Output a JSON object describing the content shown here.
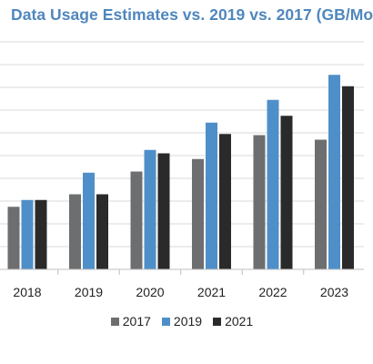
{
  "chart_data": {
    "type": "bar",
    "title": "Data Usage Estimates vs. 2019 vs. 2017 (GB/Mo",
    "categories": [
      "2018",
      "2019",
      "2020",
      "2021",
      "2022",
      "2023"
    ],
    "series": [
      {
        "name": "2017",
        "color": "#6d6e70",
        "values": [
          5.5,
          6.6,
          8.6,
          9.7,
          11.8,
          11.4
        ]
      },
      {
        "name": "2019",
        "color": "#4f8fc9",
        "values": [
          6.1,
          8.5,
          10.5,
          12.9,
          14.9,
          17.1
        ]
      },
      {
        "name": "2021",
        "color": "#2a2a2a",
        "values": [
          6.1,
          6.6,
          10.2,
          11.9,
          13.5,
          16.1
        ]
      }
    ],
    "ylim": [
      0,
      20
    ],
    "grid": true,
    "legend_position": "bottom"
  }
}
